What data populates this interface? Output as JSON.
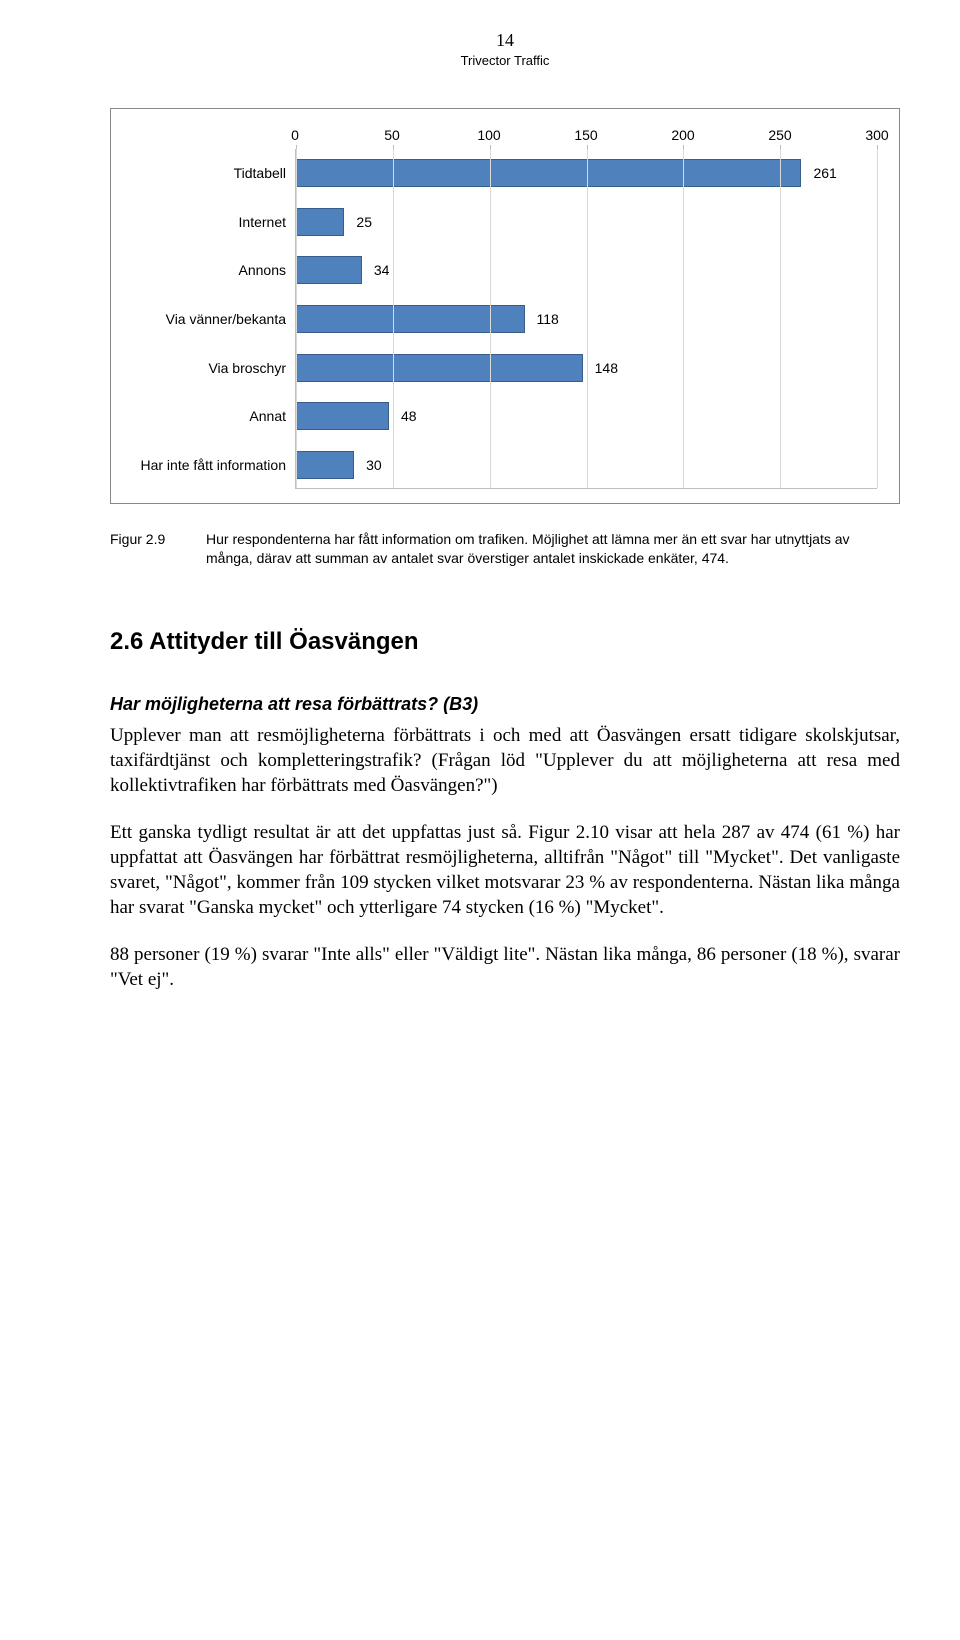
{
  "header": {
    "page_number": "14",
    "subhead": "Trivector Traffic"
  },
  "chart": {
    "type": "bar-horizontal",
    "x_min": 0,
    "x_max": 300,
    "x_tick_step": 50,
    "tick_labels": [
      "0",
      "50",
      "100",
      "150",
      "200",
      "250",
      "300"
    ],
    "bar_color": "#4f81bd",
    "bar_border": "#385d8a",
    "grid_color": "#d9d9d9",
    "axis_color": "#bfbfbf",
    "label_fontsize": 14,
    "value_fontsize": 14,
    "categories": [
      {
        "label": "Tidtabell",
        "value": 261
      },
      {
        "label": "Internet",
        "value": 25
      },
      {
        "label": "Annons",
        "value": 34
      },
      {
        "label": "Via vänner/bekanta",
        "value": 118
      },
      {
        "label": "Via broschyr",
        "value": 148
      },
      {
        "label": "Annat",
        "value": 48
      },
      {
        "label": "Har inte fått information",
        "value": 30
      }
    ]
  },
  "caption": {
    "key": "Figur 2.9",
    "text": "Hur respondenterna har fått information om trafiken. Möjlighet att lämna mer än ett svar har utnyttjats av många, därav att summan av antalet svar överstiger antalet inskickade enkäter, 474."
  },
  "section": {
    "heading": "2.6 Attityder till Öasvängen",
    "subheading": "Har möjligheterna att resa förbättrats? (B3)",
    "p1": "Upplever man att resmöjligheterna förbättrats i och med att Öasvängen ersatt tidigare skolskjutsar, taxifärdtjänst och kompletteringstrafik? (Frågan löd \"Upplever du att möjligheterna att resa med kollektivtrafiken har förbättrats med Öasvängen?\")",
    "p2": "Ett ganska tydligt resultat är att det uppfattas just så. Figur 2.10 visar att hela 287 av 474 (61 %) har uppfattat att Öasvängen har förbättrat resmöjligheterna, alltifrån \"Något\" till \"Mycket\". Det vanligaste svaret, \"Något\", kommer från 109 stycken vilket motsvarar 23 % av respondenterna. Nästan lika många har svarat \"Ganska mycket\" och ytterligare 74 stycken (16 %) \"Mycket\".",
    "p3": "88 personer (19 %) svarar \"Inte alls\" eller \"Väldigt lite\". Nästan lika många, 86 personer (18 %), svarar \"Vet ej\"."
  }
}
